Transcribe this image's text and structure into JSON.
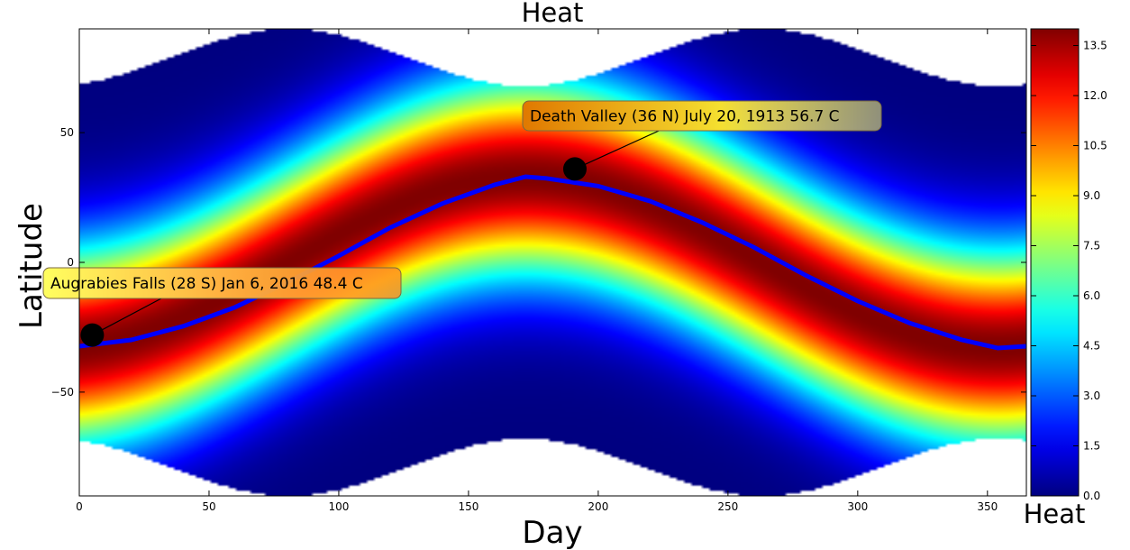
{
  "chart_data": {
    "type": "heatmap",
    "title": "Heat",
    "xlabel": "Day",
    "ylabel": "Latitude",
    "xlim": [
      0,
      365
    ],
    "ylim": [
      -90,
      90
    ],
    "x_ticks": [
      0,
      50,
      100,
      150,
      200,
      250,
      300,
      350
    ],
    "x_tick_labels": [
      "0",
      "50",
      "100",
      "150",
      "200",
      "250",
      "300",
      "350"
    ],
    "y_ticks": [
      50,
      0,
      -50
    ],
    "y_tick_labels": [
      "50",
      "0",
      "−50"
    ],
    "colorbar": {
      "label": "Heat",
      "range": [
        0.0,
        14.0
      ],
      "ticks": [
        13.5,
        12.0,
        10.5,
        9.0,
        7.5,
        6.0,
        4.5,
        3.0,
        1.5,
        0.0
      ],
      "tick_labels": [
        "13.5",
        "12.0",
        "10.5",
        "9.0",
        "7.5",
        "6.0",
        "4.5",
        "3.0",
        "1.5",
        "0.0"
      ],
      "colormap": "jet"
    },
    "heatmap": {
      "peak_value": 14.0,
      "peak_latitude_mean": 0,
      "peak_latitude_amplitude": 33,
      "peak_latitude_day_of_max": 172,
      "falloff_degrees": 38,
      "domain_edge_mean": 79,
      "domain_edge_amplitude": 11
    },
    "series": [
      {
        "type": "line",
        "color": "#0000ff",
        "x": [
          0,
          20,
          40,
          60,
          80,
          100,
          120,
          140,
          160,
          172,
          180,
          200,
          220,
          240,
          260,
          280,
          300,
          320,
          340,
          354,
          365
        ],
        "y": [
          -32.3,
          -29.9,
          -24.6,
          -17.3,
          -7.8,
          2.5,
          13.5,
          22.7,
          29.9,
          33.0,
          32.4,
          29.4,
          23.6,
          15.4,
          5.8,
          -5.0,
          -14.9,
          -23.4,
          -29.8,
          -33.0,
          -32.3
        ]
      },
      {
        "type": "scatter",
        "color": "#000000",
        "x": [
          5,
          191
        ],
        "y": [
          -28,
          36
        ]
      }
    ],
    "annotations": [
      {
        "text": "Death Valley (36 N) July 20, 1913 56.7 C",
        "x": 191,
        "y": 36,
        "box_color": "#ffff00"
      },
      {
        "text": "Augrabies Falls (28 S) Jan 6, 2016 48.4 C",
        "x": 5,
        "y": -28,
        "box_color": "#ffff00"
      }
    ]
  }
}
